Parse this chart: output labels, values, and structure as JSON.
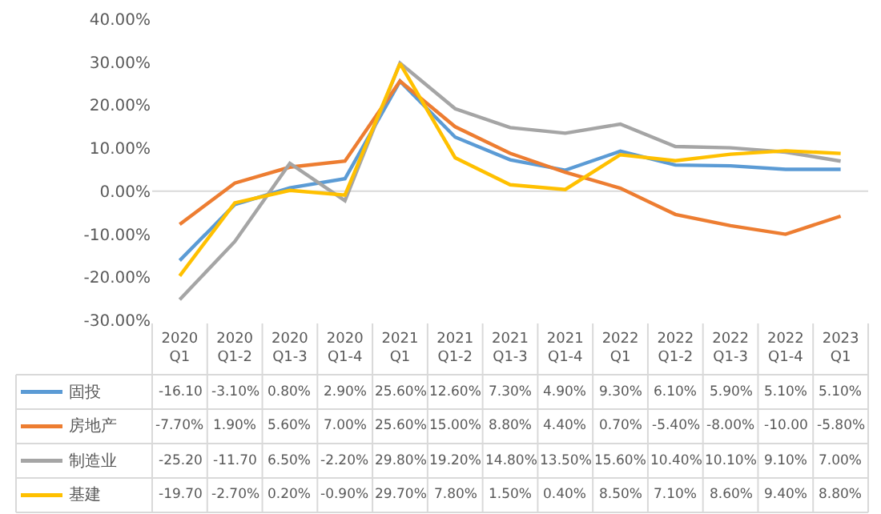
{
  "chart_data": {
    "type": "line",
    "categories": [
      "2020 Q1",
      "2020 Q1-2",
      "2020 Q1-3",
      "2020 Q1-4",
      "2021 Q1",
      "2021 Q1-2",
      "2021 Q1-3",
      "2021 Q1-4",
      "2022 Q1",
      "2022 Q1-2",
      "2022 Q1-3",
      "2022 Q1-4",
      "2023 Q1"
    ],
    "series": [
      {
        "name": "固投",
        "color": "#5b9bd5",
        "values": [
          -16.1,
          -3.1,
          0.8,
          2.9,
          25.6,
          12.6,
          7.3,
          4.9,
          9.3,
          6.1,
          5.9,
          5.1,
          5.1
        ],
        "value_labels": [
          "-16.10",
          "-3.10%",
          "0.80%",
          "2.90%",
          "25.60%",
          "12.60%",
          "7.30%",
          "4.90%",
          "9.30%",
          "6.10%",
          "5.90%",
          "5.10%",
          "5.10%"
        ]
      },
      {
        "name": "房地产",
        "color": "#ed7d31",
        "values": [
          -7.7,
          1.9,
          5.6,
          7.0,
          25.6,
          15.0,
          8.8,
          4.4,
          0.7,
          -5.4,
          -8.0,
          -10.0,
          -5.8
        ],
        "value_labels": [
          "-7.70%",
          "1.90%",
          "5.60%",
          "7.00%",
          "25.60%",
          "15.00%",
          "8.80%",
          "4.40%",
          "0.70%",
          "-5.40%",
          "-8.00%",
          "-10.00",
          "-5.80%"
        ]
      },
      {
        "name": "制造业",
        "color": "#a5a5a5",
        "values": [
          -25.2,
          -11.7,
          6.5,
          -2.2,
          29.8,
          19.2,
          14.8,
          13.5,
          15.6,
          10.4,
          10.1,
          9.1,
          7.0
        ],
        "value_labels": [
          "-25.20",
          "-11.70",
          "6.50%",
          "-2.20%",
          "29.80%",
          "19.20%",
          "14.80%",
          "13.50%",
          "15.60%",
          "10.40%",
          "10.10%",
          "9.10%",
          "7.00%"
        ]
      },
      {
        "name": "基建",
        "color": "#ffc000",
        "values": [
          -19.7,
          -2.7,
          0.2,
          -0.9,
          29.7,
          7.8,
          1.5,
          0.4,
          8.5,
          7.1,
          8.6,
          9.4,
          8.8
        ],
        "value_labels": [
          "-19.70",
          "-2.70%",
          "0.20%",
          "-0.90%",
          "29.70%",
          "7.80%",
          "1.50%",
          "0.40%",
          "8.50%",
          "7.10%",
          "8.60%",
          "9.40%",
          "8.80%"
        ]
      }
    ],
    "ylim": [
      -30,
      40
    ],
    "yticks": [
      {
        "value": -30,
        "label": "-30.00%"
      },
      {
        "value": -20,
        "label": "-20.00%"
      },
      {
        "value": -10,
        "label": "-10.00%"
      },
      {
        "value": 0,
        "label": "0.00%"
      },
      {
        "value": 10,
        "label": "10.00%"
      },
      {
        "value": 20,
        "label": "20.00%"
      },
      {
        "value": 30,
        "label": "30.00%"
      },
      {
        "value": 40,
        "label": "40.00%"
      }
    ],
    "grid": false,
    "ref_lines": [
      {
        "axis": "y",
        "value": 0,
        "color": "#d9d9d9"
      }
    ],
    "legend": "bottom",
    "marker": "none",
    "line_style": "solid"
  }
}
